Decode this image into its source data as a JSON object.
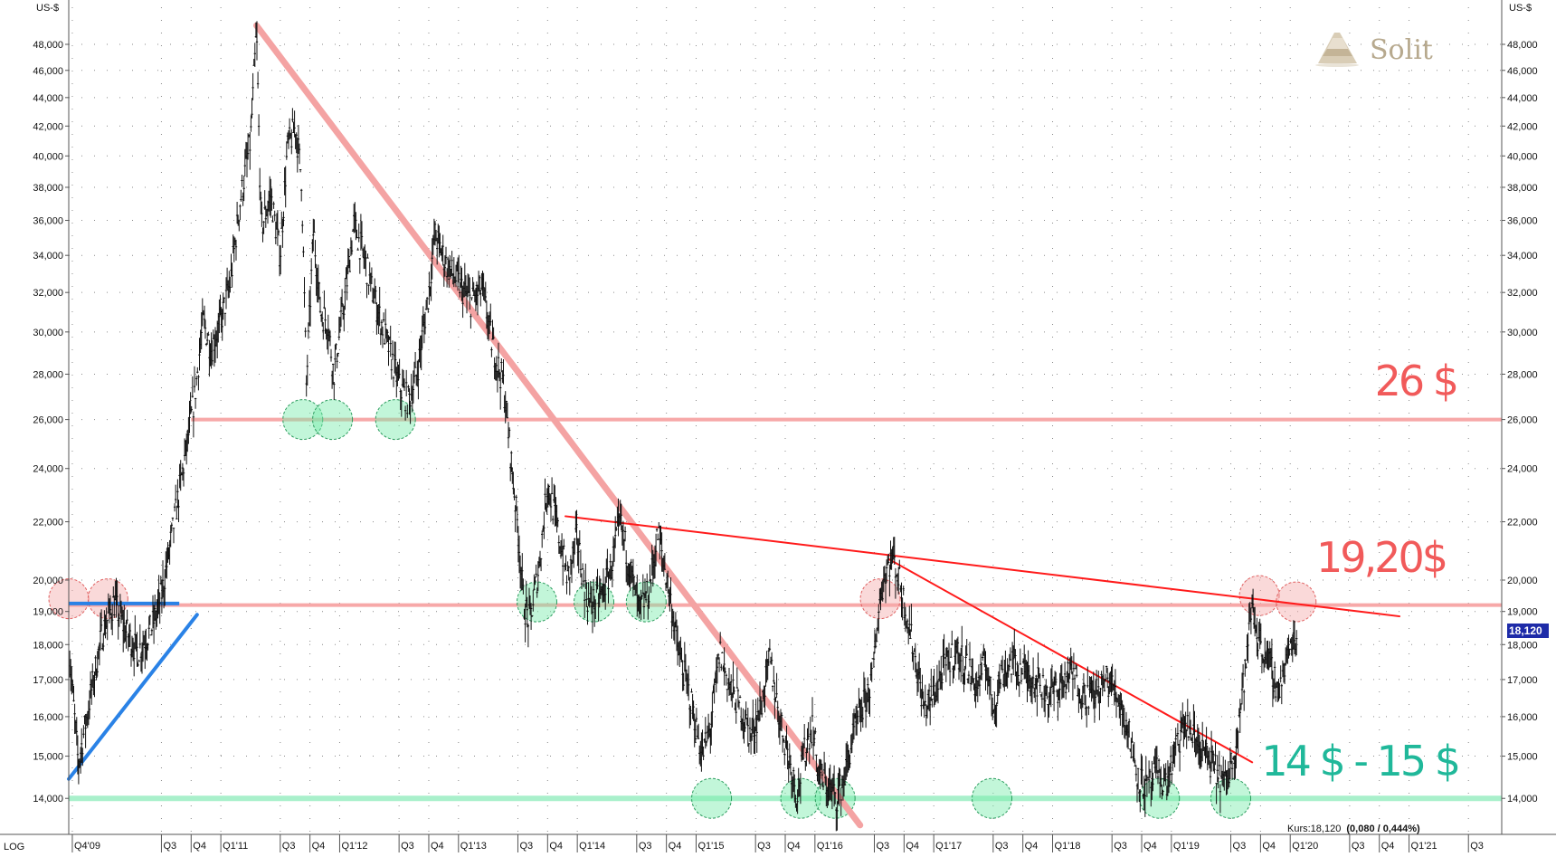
{
  "chart_data": {
    "type": "candlestick",
    "y_unit_label": "US-$",
    "y_scale": "log",
    "scale_label": "LOG",
    "ylim": [
      13200,
      51000
    ],
    "xlim": [
      2009.72,
      2021.78
    ],
    "y_ticks": [
      {
        "value": 14000,
        "label": "14,000"
      },
      {
        "value": 15000,
        "label": "15,000"
      },
      {
        "value": 16000,
        "label": "16,000"
      },
      {
        "value": 17000,
        "label": "17,000"
      },
      {
        "value": 18000,
        "label": "18,000"
      },
      {
        "value": 19000,
        "label": "19,000"
      },
      {
        "value": 20000,
        "label": "20,000"
      },
      {
        "value": 22000,
        "label": "22,000"
      },
      {
        "value": 24000,
        "label": "24,000"
      },
      {
        "value": 26000,
        "label": "26,000"
      },
      {
        "value": 28000,
        "label": "28,000"
      },
      {
        "value": 30000,
        "label": "30,000"
      },
      {
        "value": 32000,
        "label": "32,000"
      },
      {
        "value": 34000,
        "label": "34,000"
      },
      {
        "value": 36000,
        "label": "36,000"
      },
      {
        "value": 38000,
        "label": "38,000"
      },
      {
        "value": 40000,
        "label": "40,000"
      },
      {
        "value": 42000,
        "label": "42,000"
      },
      {
        "value": 44000,
        "label": "44,000"
      },
      {
        "value": 46000,
        "label": "46,000"
      },
      {
        "value": 48000,
        "label": "48,000"
      }
    ],
    "x_ticks": [
      {
        "t": 2009.75,
        "label": "Q4'09"
      },
      {
        "t": 2010.5,
        "label": "Q3"
      },
      {
        "t": 2010.75,
        "label": "Q4"
      },
      {
        "t": 2011.0,
        "label": "Q1'11"
      },
      {
        "t": 2011.5,
        "label": "Q3"
      },
      {
        "t": 2011.75,
        "label": "Q4"
      },
      {
        "t": 2012.0,
        "label": "Q1'12"
      },
      {
        "t": 2012.5,
        "label": "Q3"
      },
      {
        "t": 2012.75,
        "label": "Q4"
      },
      {
        "t": 2013.0,
        "label": "Q1'13"
      },
      {
        "t": 2013.5,
        "label": "Q3"
      },
      {
        "t": 2013.75,
        "label": "Q4"
      },
      {
        "t": 2014.0,
        "label": "Q1'14"
      },
      {
        "t": 2014.5,
        "label": "Q3"
      },
      {
        "t": 2014.75,
        "label": "Q4"
      },
      {
        "t": 2015.0,
        "label": "Q1'15"
      },
      {
        "t": 2015.5,
        "label": "Q3"
      },
      {
        "t": 2015.75,
        "label": "Q4"
      },
      {
        "t": 2016.0,
        "label": "Q1'16"
      },
      {
        "t": 2016.5,
        "label": "Q3"
      },
      {
        "t": 2016.75,
        "label": "Q4"
      },
      {
        "t": 2017.0,
        "label": "Q1'17"
      },
      {
        "t": 2017.5,
        "label": "Q3"
      },
      {
        "t": 2017.75,
        "label": "Q4"
      },
      {
        "t": 2018.0,
        "label": "Q1'18"
      },
      {
        "t": 2018.5,
        "label": "Q3"
      },
      {
        "t": 2018.75,
        "label": "Q4"
      },
      {
        "t": 2019.0,
        "label": "Q1'19"
      },
      {
        "t": 2019.5,
        "label": "Q3"
      },
      {
        "t": 2019.75,
        "label": "Q4"
      },
      {
        "t": 2020.0,
        "label": "Q1'20"
      },
      {
        "t": 2020.5,
        "label": "Q3"
      },
      {
        "t": 2020.75,
        "label": "Q4"
      },
      {
        "t": 2021.0,
        "label": "Q1'21"
      },
      {
        "t": 2021.5,
        "label": "Q3"
      }
    ],
    "price_path": [
      [
        2009.72,
        18000
      ],
      [
        2009.8,
        14800
      ],
      [
        2009.9,
        16500
      ],
      [
        2010.0,
        18300
      ],
      [
        2010.1,
        19300
      ],
      [
        2010.2,
        18400
      ],
      [
        2010.3,
        17800
      ],
      [
        2010.42,
        18500
      ],
      [
        2010.5,
        19500
      ],
      [
        2010.6,
        21800
      ],
      [
        2010.7,
        24500
      ],
      [
        2010.78,
        27000
      ],
      [
        2010.85,
        30500
      ],
      [
        2010.92,
        29200
      ],
      [
        2011.0,
        30500
      ],
      [
        2011.08,
        32500
      ],
      [
        2011.16,
        37000
      ],
      [
        2011.25,
        41000
      ],
      [
        2011.3,
        49000
      ],
      [
        2011.34,
        35500
      ],
      [
        2011.42,
        37500
      ],
      [
        2011.5,
        34000
      ],
      [
        2011.56,
        40500
      ],
      [
        2011.63,
        42000
      ],
      [
        2011.68,
        38500
      ],
      [
        2011.72,
        27500
      ],
      [
        2011.78,
        35500
      ],
      [
        2011.84,
        31000
      ],
      [
        2011.9,
        30500
      ],
      [
        2011.95,
        28000
      ],
      [
        2012.05,
        32000
      ],
      [
        2012.12,
        35800
      ],
      [
        2012.2,
        34000
      ],
      [
        2012.3,
        31500
      ],
      [
        2012.4,
        29500
      ],
      [
        2012.5,
        27500
      ],
      [
        2012.58,
        26800
      ],
      [
        2012.65,
        28000
      ],
      [
        2012.75,
        32000
      ],
      [
        2012.8,
        35200
      ],
      [
        2012.9,
        33500
      ],
      [
        2013.0,
        32500
      ],
      [
        2013.1,
        31500
      ],
      [
        2013.2,
        32200
      ],
      [
        2013.28,
        29500
      ],
      [
        2013.38,
        27500
      ],
      [
        2013.45,
        24000
      ],
      [
        2013.5,
        21800
      ],
      [
        2013.55,
        19200
      ],
      [
        2013.6,
        18700
      ],
      [
        2013.68,
        20500
      ],
      [
        2013.75,
        23500
      ],
      [
        2013.82,
        22000
      ],
      [
        2013.92,
        20000
      ],
      [
        2014.0,
        21500
      ],
      [
        2014.05,
        20000
      ],
      [
        2014.1,
        19200
      ],
      [
        2014.2,
        19500
      ],
      [
        2014.28,
        20300
      ],
      [
        2014.36,
        22000
      ],
      [
        2014.45,
        20300
      ],
      [
        2014.52,
        19000
      ],
      [
        2014.6,
        19600
      ],
      [
        2014.68,
        21600
      ],
      [
        2014.78,
        19500
      ],
      [
        2014.85,
        17800
      ],
      [
        2014.95,
        16500
      ],
      [
        2015.05,
        15000
      ],
      [
        2015.12,
        15700
      ],
      [
        2015.2,
        17800
      ],
      [
        2015.28,
        16800
      ],
      [
        2015.38,
        16200
      ],
      [
        2015.46,
        15500
      ],
      [
        2015.55,
        16300
      ],
      [
        2015.62,
        17600
      ],
      [
        2015.7,
        16000
      ],
      [
        2015.78,
        15000
      ],
      [
        2015.85,
        14100
      ],
      [
        2015.92,
        15200
      ],
      [
        2015.98,
        15800
      ],
      [
        2016.03,
        14600
      ],
      [
        2016.1,
        14300
      ],
      [
        2016.18,
        14000
      ],
      [
        2016.25,
        14500
      ],
      [
        2016.32,
        15500
      ],
      [
        2016.4,
        16200
      ],
      [
        2016.48,
        17000
      ],
      [
        2016.55,
        19500
      ],
      [
        2016.6,
        20400
      ],
      [
        2016.66,
        20800
      ],
      [
        2016.72,
        19800
      ],
      [
        2016.78,
        18800
      ],
      [
        2016.85,
        17500
      ],
      [
        2016.92,
        16200
      ],
      [
        2017.0,
        16600
      ],
      [
        2017.08,
        17300
      ],
      [
        2017.18,
        17800
      ],
      [
        2017.28,
        17400
      ],
      [
        2017.36,
        16800
      ],
      [
        2017.44,
        17500
      ],
      [
        2017.5,
        16200
      ],
      [
        2017.56,
        17100
      ],
      [
        2017.66,
        17500
      ],
      [
        2017.76,
        17200
      ],
      [
        2017.86,
        17000
      ],
      [
        2017.96,
        16600
      ],
      [
        2018.06,
        16800
      ],
      [
        2018.16,
        17200
      ],
      [
        2018.26,
        16600
      ],
      [
        2018.36,
        16600
      ],
      [
        2018.46,
        17000
      ],
      [
        2018.56,
        16500
      ],
      [
        2018.64,
        15600
      ],
      [
        2018.72,
        14500
      ],
      [
        2018.8,
        14200
      ],
      [
        2018.88,
        14600
      ],
      [
        2018.96,
        14300
      ],
      [
        2019.04,
        15200
      ],
      [
        2019.12,
        15800
      ],
      [
        2019.2,
        15400
      ],
      [
        2019.3,
        15000
      ],
      [
        2019.38,
        14600
      ],
      [
        2019.46,
        14300
      ],
      [
        2019.54,
        15300
      ],
      [
        2019.62,
        17200
      ],
      [
        2019.68,
        19300
      ],
      [
        2019.72,
        18300
      ],
      [
        2019.78,
        17800
      ],
      [
        2019.84,
        17300
      ],
      [
        2019.9,
        16700
      ],
      [
        2019.96,
        17400
      ],
      [
        2020.02,
        18200
      ],
      [
        2020.06,
        18120
      ]
    ],
    "annotations": {
      "resistance_26": {
        "value": 26000,
        "label": "26 $",
        "color": "#f15a5a"
      },
      "resistance_1920": {
        "value": 19200,
        "label": "19,20$",
        "color": "#f15a5a"
      },
      "support_14_15": {
        "value": 14000,
        "label": "14 $ - 15 $",
        "color": "#20b89a"
      },
      "downtrend_major": {
        "from": [
          2011.3,
          49500
        ],
        "to": [
          2016.38,
          13400
        ],
        "color": "#f4a3a3"
      },
      "downtrend_upper": {
        "from": [
          2013.9,
          22200
        ],
        "to": [
          2020.92,
          18850
        ],
        "color": "#ff1a1a"
      },
      "downtrend_lower": {
        "from": [
          2016.62,
          20700
        ],
        "to": [
          2019.68,
          14850
        ],
        "color": "#ff1a1a"
      },
      "uptrend_blue": {
        "from": [
          2009.72,
          14450
        ],
        "to": [
          2010.8,
          18900
        ],
        "color": "#2a82e6"
      },
      "blue_level": {
        "from": 2009.72,
        "to": 2010.65,
        "value": 19250,
        "color": "#2a82e6"
      },
      "support_circles": [
        [
          2011.69,
          26000
        ],
        [
          2011.94,
          26000
        ],
        [
          2012.47,
          26000
        ],
        [
          2013.66,
          19300
        ],
        [
          2014.14,
          19300
        ],
        [
          2014.58,
          19300
        ],
        [
          2015.13,
          14000
        ],
        [
          2015.88,
          14000
        ],
        [
          2016.17,
          14000
        ],
        [
          2017.49,
          14000
        ],
        [
          2018.9,
          14000
        ],
        [
          2019.5,
          14000
        ]
      ],
      "resistance_circles": [
        [
          2009.72,
          19400
        ],
        [
          2010.05,
          19400
        ],
        [
          2016.55,
          19400
        ],
        [
          2019.74,
          19500
        ],
        [
          2020.05,
          19300
        ]
      ]
    },
    "current_price_label": "18,120"
  },
  "brand": {
    "name": "Solit"
  },
  "footer": {
    "kurs_label": "Kurs:18,120",
    "kurs_change": "(0,080 / 0,444%)"
  }
}
